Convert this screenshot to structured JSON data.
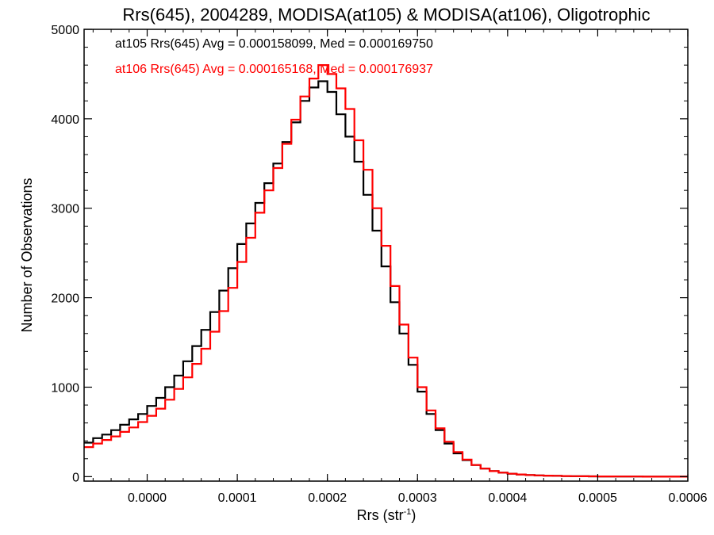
{
  "chart_data": {
    "type": "line",
    "title": "Rrs(645), 2004289, MODISA(at105) & MODISA(at106), Oligotrophic",
    "xlabel": "Rrs (str",
    "xlabel_sup": "-1",
    "xlabel_close": ")",
    "ylabel": "Number of Observations",
    "xlim": [
      -7e-05,
      0.0006
    ],
    "ylim": [
      -50,
      5000
    ],
    "x_ticks": [
      "0.0000",
      "0.0001",
      "0.0002",
      "0.0003",
      "0.0004",
      "0.0005",
      "0.0006"
    ],
    "x_tick_values": [
      0.0,
      0.0001,
      0.0002,
      0.0003,
      0.0004,
      0.0005,
      0.0006
    ],
    "y_ticks": [
      "0",
      "1000",
      "2000",
      "3000",
      "4000",
      "5000"
    ],
    "y_tick_values": [
      0,
      1000,
      2000,
      3000,
      4000,
      5000
    ],
    "grid": false,
    "style": "histogram-step",
    "annotations": [
      {
        "text": "at105 Rrs(645) Avg = 0.000158099, Med = 0.000169750",
        "color": "#000000"
      },
      {
        "text": "at106 Rrs(645) Avg = 0.000165168, Med = 0.000176937",
        "color": "#ff0000"
      }
    ],
    "series": [
      {
        "color": "#000000",
        "x": [
          -7e-05,
          -6e-05,
          -5e-05,
          -4e-05,
          -3e-05,
          -2e-05,
          -1e-05,
          0.0,
          1e-05,
          2e-05,
          3e-05,
          4e-05,
          5e-05,
          6e-05,
          7e-05,
          8e-05,
          9e-05,
          0.0001,
          0.00011,
          0.00012,
          0.00013,
          0.00014,
          0.00015,
          0.00016,
          0.00017,
          0.00018,
          0.00019,
          0.0002,
          0.00021,
          0.00022,
          0.00023,
          0.00024,
          0.00025,
          0.00026,
          0.00027,
          0.00028,
          0.00029,
          0.0003,
          0.00031,
          0.00032,
          0.00033,
          0.00034,
          0.00035,
          0.00036,
          0.00037,
          0.00038,
          0.00039,
          0.0004,
          0.00041,
          0.00042,
          0.00043,
          0.00044,
          0.00045,
          0.00046,
          0.00047,
          0.00048,
          0.00049,
          0.0005,
          0.00052,
          0.00055,
          0.0006
        ],
        "values": [
          380,
          430,
          470,
          520,
          580,
          640,
          700,
          790,
          880,
          1000,
          1130,
          1290,
          1460,
          1640,
          1840,
          2080,
          2330,
          2600,
          2830,
          3060,
          3280,
          3500,
          3740,
          3960,
          4200,
          4350,
          4420,
          4300,
          4050,
          3800,
          3520,
          3150,
          2750,
          2350,
          1950,
          1600,
          1250,
          950,
          700,
          520,
          370,
          260,
          185,
          130,
          90,
          62,
          45,
          32,
          24,
          18,
          14,
          11,
          9,
          7,
          5,
          4,
          3,
          2,
          1,
          0,
          0
        ]
      },
      {
        "color": "#ff0000",
        "x": [
          -7e-05,
          -6e-05,
          -5e-05,
          -4e-05,
          -3e-05,
          -2e-05,
          -1e-05,
          0.0,
          1e-05,
          2e-05,
          3e-05,
          4e-05,
          5e-05,
          6e-05,
          7e-05,
          8e-05,
          9e-05,
          0.0001,
          0.00011,
          0.00012,
          0.00013,
          0.00014,
          0.00015,
          0.00016,
          0.00017,
          0.00018,
          0.00019,
          0.0002,
          0.00021,
          0.00022,
          0.00023,
          0.00024,
          0.00025,
          0.00026,
          0.00027,
          0.00028,
          0.00029,
          0.0003,
          0.00031,
          0.00032,
          0.00033,
          0.00034,
          0.00035,
          0.00036,
          0.00037,
          0.00038,
          0.00039,
          0.0004,
          0.00041,
          0.00042,
          0.00043,
          0.00044,
          0.00045,
          0.00046,
          0.00047,
          0.00048,
          0.00049,
          0.0005,
          0.00052,
          0.00055,
          0.0006
        ],
        "values": [
          330,
          370,
          410,
          450,
          500,
          550,
          610,
          680,
          760,
          860,
          980,
          1110,
          1260,
          1430,
          1620,
          1850,
          2110,
          2400,
          2670,
          2950,
          3200,
          3450,
          3720,
          3990,
          4250,
          4450,
          4600,
          4500,
          4340,
          4110,
          3760,
          3430,
          3000,
          2580,
          2130,
          1700,
          1330,
          1000,
          740,
          540,
          390,
          275,
          190,
          130,
          90,
          62,
          45,
          32,
          24,
          18,
          14,
          11,
          9,
          7,
          5,
          4,
          3,
          2,
          1,
          0,
          0
        ]
      }
    ]
  }
}
